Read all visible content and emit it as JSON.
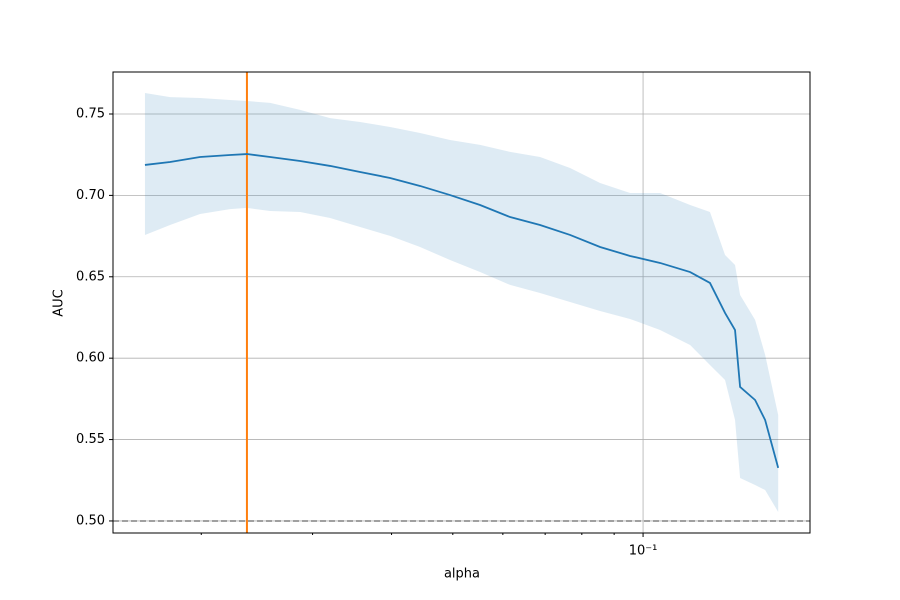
{
  "chart_data": {
    "type": "line",
    "xlabel": "alpha",
    "ylabel": "AUC",
    "xscale": "log",
    "grid": true,
    "xlim": [
      0.0145,
      0.1837
    ],
    "ylim": [
      0.4926,
      0.7758
    ],
    "xticks": [
      {
        "value": 0.1,
        "label": "10⁻¹"
      }
    ],
    "xminorticks": [
      0.02,
      0.03,
      0.04,
      0.05,
      0.06,
      0.07,
      0.08,
      0.09
    ],
    "yticks": [
      {
        "value": 0.5,
        "label": "0.50"
      },
      {
        "value": 0.55,
        "label": "0.55"
      },
      {
        "value": 0.6,
        "label": "0.60"
      },
      {
        "value": 0.65,
        "label": "0.65"
      },
      {
        "value": 0.7,
        "label": "0.70"
      },
      {
        "value": 0.75,
        "label": "0.75"
      }
    ],
    "color": "#1f77b4",
    "band_color": "#1f77b4",
    "x": [
      0.01629,
      0.01785,
      0.01991,
      0.02221,
      0.02362,
      0.0257,
      0.02867,
      0.03198,
      0.03567,
      0.03979,
      0.04438,
      0.0495,
      0.05522,
      0.0616,
      0.06871,
      0.07665,
      0.0855,
      0.09537,
      0.1064,
      0.1187,
      0.1276,
      0.1348,
      0.1398,
      0.1424,
      0.1504,
      0.156,
      0.1636
    ],
    "values": [
      0.7187,
      0.7205,
      0.7236,
      0.7248,
      0.7254,
      0.7236,
      0.7211,
      0.7181,
      0.7144,
      0.7107,
      0.7058,
      0.7002,
      0.6941,
      0.6867,
      0.6818,
      0.6757,
      0.6683,
      0.6628,
      0.6585,
      0.6529,
      0.6462,
      0.6278,
      0.6173,
      0.5823,
      0.5743,
      0.562,
      0.5326
    ],
    "upper": [
      0.7629,
      0.7604,
      0.7598,
      0.7586,
      0.758,
      0.7568,
      0.7525,
      0.7475,
      0.7451,
      0.742,
      0.7383,
      0.734,
      0.731,
      0.7267,
      0.7236,
      0.7168,
      0.7076,
      0.7015,
      0.7015,
      0.6941,
      0.6898,
      0.6634,
      0.6572,
      0.6388,
      0.6235,
      0.602,
      0.5651
    ],
    "lower": [
      0.6757,
      0.6818,
      0.6886,
      0.6916,
      0.6923,
      0.6904,
      0.6898,
      0.6861,
      0.6806,
      0.6751,
      0.6683,
      0.6603,
      0.6529,
      0.645,
      0.64,
      0.6345,
      0.629,
      0.6241,
      0.6173,
      0.6081,
      0.5958,
      0.5866,
      0.562,
      0.5264,
      0.5221,
      0.519,
      0.5055
    ],
    "vline": 0.02362,
    "vline_color": "#ff7f0e",
    "hline": 0.5,
    "hline_color": "#808080"
  }
}
